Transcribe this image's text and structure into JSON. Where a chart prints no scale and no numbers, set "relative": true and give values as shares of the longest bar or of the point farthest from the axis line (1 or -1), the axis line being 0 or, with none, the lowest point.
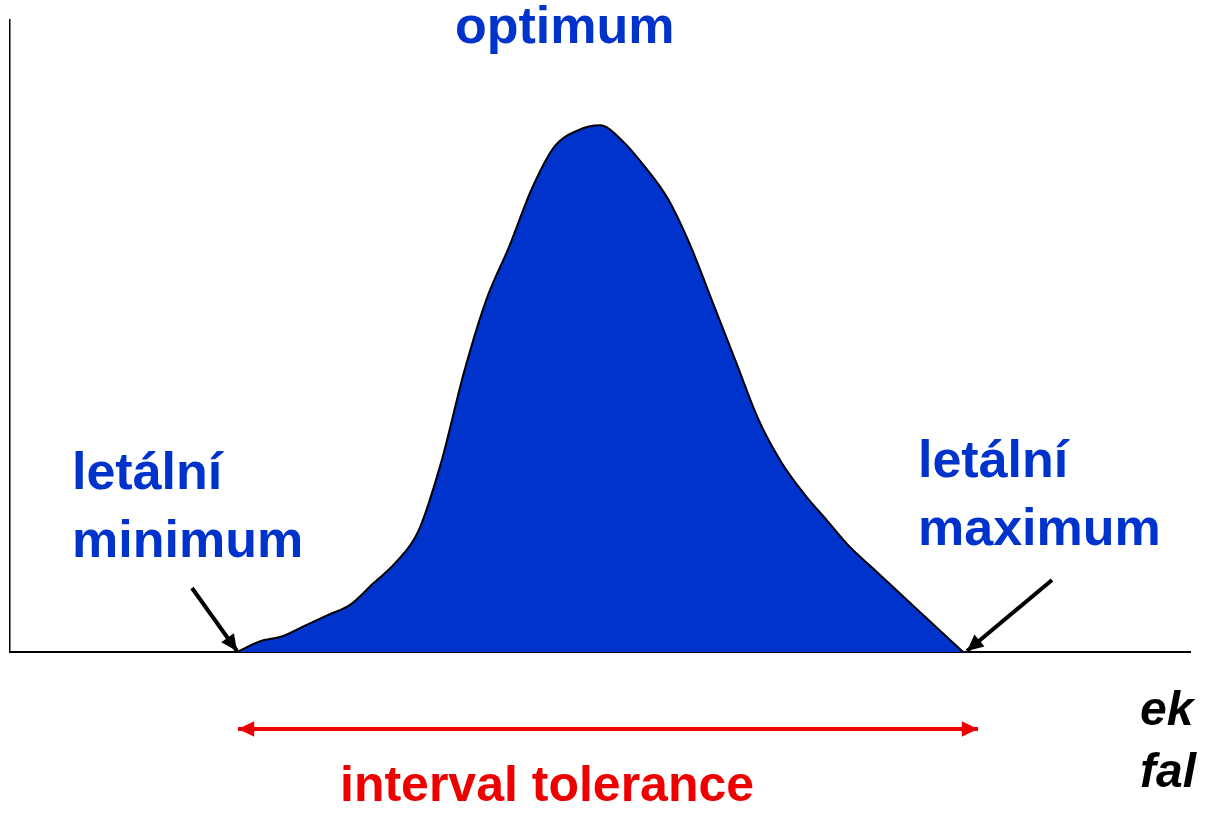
{
  "chart_data": {
    "type": "area",
    "relative": true,
    "color": "#0033cc",
    "xlabel": "ek fal",
    "categories": [
      null,
      null,
      null,
      null,
      null,
      null,
      null,
      null,
      null,
      null,
      null,
      null,
      null,
      null,
      null,
      null,
      null,
      null,
      null,
      null,
      null,
      null,
      null,
      null,
      null,
      null,
      null,
      null,
      null,
      null,
      null,
      null,
      null,
      null,
      null,
      null,
      null,
      null,
      null,
      null,
      null,
      null,
      null,
      null,
      null,
      null,
      null,
      null,
      null,
      null,
      null,
      null,
      null
    ],
    "values": [
      null,
      null,
      null,
      null,
      null,
      null,
      null,
      null,
      null,
      null,
      0,
      0.02,
      0.03,
      0.05,
      0.07,
      0.09,
      0.13,
      0.17,
      0.23,
      0.36,
      0.53,
      0.67,
      0.77,
      0.88,
      0.96,
      0.99,
      1,
      0.97,
      0.92,
      0.86,
      0.77,
      0.66,
      0.55,
      0.44,
      0.36,
      0.3,
      0.25,
      0.2,
      0.16,
      0.12,
      0.08,
      0.04,
      0,
      null,
      null,
      null,
      null,
      null,
      null,
      null,
      null,
      null,
      null
    ],
    "annotations": [
      "optimum",
      "letální minimum",
      "letální maximum",
      "interval tolerance"
    ],
    "grid": false,
    "legend": false
  }
}
